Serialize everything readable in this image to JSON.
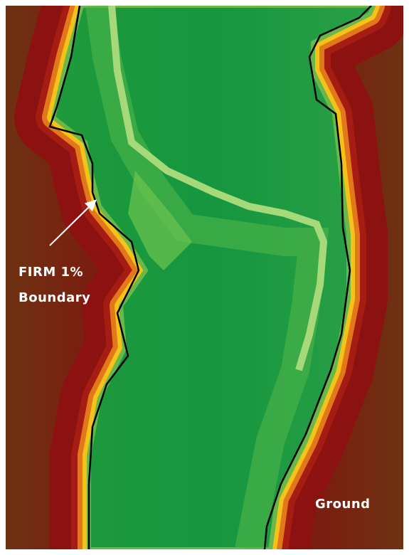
{
  "annotation": {
    "lines": [
      "FIRM 1%",
      "Boundary"
    ]
  },
  "ground_label": "Ground"
}
